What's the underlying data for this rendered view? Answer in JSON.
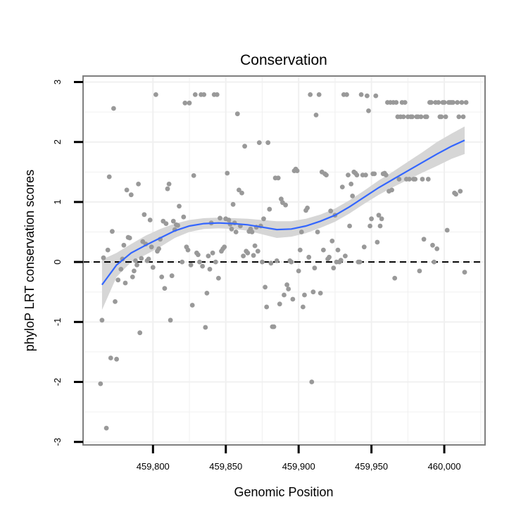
{
  "chart_data": {
    "type": "scatter",
    "title": "Conservation",
    "xlabel": "Genomic Position",
    "ylabel": "phyloP LRT conservation scores",
    "xlim": [
      459752,
      460028
    ],
    "ylim": [
      -3.05,
      3.1
    ],
    "x_ticks": [
      459800,
      459850,
      459900,
      459950,
      460000
    ],
    "x_tick_labels": [
      "459,800",
      "459,850",
      "459,900",
      "459,950",
      "460,000"
    ],
    "y_ticks": [
      -3,
      -2,
      -1,
      0,
      1,
      2,
      3
    ],
    "y_tick_labels": [
      "-3",
      "-2",
      "-1",
      "0",
      "1",
      "2",
      "3"
    ],
    "reference_line": {
      "y": 0,
      "style": "dashed",
      "color": "#000000"
    },
    "grid": true,
    "legend": "none",
    "colors": {
      "points": "#999999",
      "smooth_line": "#3366ff",
      "confidence_band": "#d6d6d6",
      "grid": "#f0f0f0",
      "frame": "#7f7f7f"
    },
    "points": [
      [
        459764,
        -2.03
      ],
      [
        459765,
        -0.97
      ],
      [
        459766,
        0.07
      ],
      [
        459768,
        -2.77
      ],
      [
        459769,
        0.2
      ],
      [
        459770,
        1.42
      ],
      [
        459771,
        -1.6
      ],
      [
        459772,
        0.51
      ],
      [
        459773,
        2.56
      ],
      [
        459774,
        -0.66
      ],
      [
        459775,
        -1.62
      ],
      [
        459776,
        -0.3
      ],
      [
        459778,
        -0.12
      ],
      [
        459779,
        0.05
      ],
      [
        459780,
        0.28
      ],
      [
        459781,
        -0.35
      ],
      [
        459782,
        1.2
      ],
      [
        459783,
        0.41
      ],
      [
        459784,
        0.4
      ],
      [
        459785,
        1.12
      ],
      [
        459786,
        -0.25
      ],
      [
        459787,
        -0.15
      ],
      [
        459788,
        0.02
      ],
      [
        459789,
        -0.05
      ],
      [
        459790,
        1.3
      ],
      [
        459791,
        -1.18
      ],
      [
        459792,
        0.06
      ],
      [
        459793,
        0.34
      ],
      [
        459794,
        0.79
      ],
      [
        459795,
        0.3
      ],
      [
        459796,
        0.02
      ],
      [
        459797,
        0.05
      ],
      [
        459798,
        0.7
      ],
      [
        459799,
        0.25
      ],
      [
        459800,
        -0.09
      ],
      [
        459802,
        2.79
      ],
      [
        459803,
        0.18
      ],
      [
        459804,
        0.22
      ],
      [
        459805,
        0.38
      ],
      [
        459806,
        -0.25
      ],
      [
        459807,
        0.68
      ],
      [
        459808,
        -0.44
      ],
      [
        459809,
        0.64
      ],
      [
        459810,
        1.22
      ],
      [
        459811,
        1.3
      ],
      [
        459812,
        -0.97
      ],
      [
        459813,
        -0.23
      ],
      [
        459814,
        0.68
      ],
      [
        459815,
        0.54
      ],
      [
        459816,
        0.62
      ],
      [
        459817,
        0.61
      ],
      [
        459818,
        0.93
      ],
      [
        459820,
        0.0
      ],
      [
        459821,
        0.75
      ],
      [
        459822,
        2.65
      ],
      [
        459823,
        0.25
      ],
      [
        459824,
        0.2
      ],
      [
        459825,
        2.65
      ],
      [
        459826,
        -0.05
      ],
      [
        459827,
        -0.72
      ],
      [
        459828,
        1.44
      ],
      [
        459829,
        2.79
      ],
      [
        459830,
        0.15
      ],
      [
        459831,
        0.12
      ],
      [
        459832,
        0.0
      ],
      [
        459833,
        2.79
      ],
      [
        459834,
        -0.07
      ],
      [
        459835,
        2.79
      ],
      [
        459836,
        -1.09
      ],
      [
        459837,
        -0.52
      ],
      [
        459838,
        0.1
      ],
      [
        459839,
        -0.12
      ],
      [
        459840,
        0.65
      ],
      [
        459841,
        0.15
      ],
      [
        459842,
        2.79
      ],
      [
        459843,
        0.0
      ],
      [
        459844,
        2.79
      ],
      [
        459845,
        -0.27
      ],
      [
        459846,
        0.73
      ],
      [
        459847,
        0.18
      ],
      [
        459848,
        0.22
      ],
      [
        459849,
        0.25
      ],
      [
        459850,
        0.72
      ],
      [
        459851,
        1.48
      ],
      [
        459852,
        0.7
      ],
      [
        459853,
        0.63
      ],
      [
        459854,
        0.55
      ],
      [
        459855,
        0.96
      ],
      [
        459856,
        0.65
      ],
      [
        459857,
        0.5
      ],
      [
        459858,
        2.47
      ],
      [
        459859,
        1.2
      ],
      [
        459860,
        0.6
      ],
      [
        459861,
        1.15
      ],
      [
        459862,
        0.1
      ],
      [
        459863,
        1.93
      ],
      [
        459864,
        0.18
      ],
      [
        459865,
        0.15
      ],
      [
        459866,
        0.51
      ],
      [
        459867,
        0.55
      ],
      [
        459868,
        0.5
      ],
      [
        459869,
        0.11
      ],
      [
        459870,
        0.27
      ],
      [
        459871,
        0.58
      ],
      [
        459872,
        0.18
      ],
      [
        459873,
        1.99
      ],
      [
        459874,
        0.6
      ],
      [
        459875,
        0.0
      ],
      [
        459876,
        0.72
      ],
      [
        459877,
        -0.42
      ],
      [
        459878,
        -0.75
      ],
      [
        459879,
        1.99
      ],
      [
        459880,
        0.88
      ],
      [
        459881,
        -0.02
      ],
      [
        459882,
        -1.08
      ],
      [
        459883,
        -1.08
      ],
      [
        459884,
        1.4
      ],
      [
        459885,
        0.02
      ],
      [
        459886,
        1.4
      ],
      [
        459887,
        -0.7
      ],
      [
        459888,
        1.05
      ],
      [
        459889,
        0.99
      ],
      [
        459890,
        -0.55
      ],
      [
        459891,
        0.95
      ],
      [
        459892,
        -0.38
      ],
      [
        459893,
        -0.45
      ],
      [
        459894,
        0.02
      ],
      [
        459895,
        0.0
      ],
      [
        459896,
        -0.62
      ],
      [
        459897,
        1.52
      ],
      [
        459898,
        1.55
      ],
      [
        459899,
        1.52
      ],
      [
        459900,
        -0.15
      ],
      [
        459901,
        0.2
      ],
      [
        459902,
        0.5
      ],
      [
        459903,
        -0.75
      ],
      [
        459904,
        -0.55
      ],
      [
        459905,
        0.86
      ],
      [
        459906,
        0.9
      ],
      [
        459907,
        0.08
      ],
      [
        459908,
        2.79
      ],
      [
        459909,
        -2.0
      ],
      [
        459910,
        -0.5
      ],
      [
        459911,
        -0.1
      ],
      [
        459912,
        2.45
      ],
      [
        459913,
        0.5
      ],
      [
        459914,
        2.79
      ],
      [
        459915,
        -0.52
      ],
      [
        459916,
        1.5
      ],
      [
        459917,
        0.2
      ],
      [
        459918,
        1.47
      ],
      [
        459919,
        1.45
      ],
      [
        459920,
        0.05
      ],
      [
        459921,
        0.08
      ],
      [
        459922,
        0.85
      ],
      [
        459923,
        0.35
      ],
      [
        459924,
        -0.1
      ],
      [
        459925,
        0.78
      ],
      [
        459926,
        0.0
      ],
      [
        459927,
        0.2
      ],
      [
        459928,
        0.0
      ],
      [
        459929,
        0.03
      ],
      [
        459930,
        1.25
      ],
      [
        459931,
        2.79
      ],
      [
        459932,
        0.1
      ],
      [
        459933,
        2.79
      ],
      [
        459934,
        1.45
      ],
      [
        459935,
        0.6
      ],
      [
        459936,
        1.3
      ],
      [
        459937,
        1.1
      ],
      [
        459938,
        1.5
      ],
      [
        459939,
        1.48
      ],
      [
        459940,
        1.45
      ],
      [
        459941,
        0.0
      ],
      [
        459942,
        0.0
      ],
      [
        459943,
        2.79
      ],
      [
        459944,
        1.45
      ],
      [
        459945,
        0.25
      ],
      [
        459946,
        1.45
      ],
      [
        459947,
        2.77
      ],
      [
        459948,
        2.52
      ],
      [
        459949,
        0.6
      ],
      [
        459950,
        0.72
      ],
      [
        459951,
        1.47
      ],
      [
        459952,
        1.47
      ],
      [
        459953,
        2.77
      ],
      [
        459954,
        0.33
      ],
      [
        459955,
        0.78
      ],
      [
        459956,
        0.6
      ],
      [
        459957,
        0.72
      ],
      [
        459958,
        1.47
      ],
      [
        459959,
        1.48
      ],
      [
        459960,
        1.45
      ],
      [
        459961,
        2.66
      ],
      [
        459962,
        1.18
      ],
      [
        459963,
        2.66
      ],
      [
        459964,
        1.2
      ],
      [
        459965,
        2.66
      ],
      [
        459966,
        -0.27
      ],
      [
        459967,
        2.66
      ],
      [
        459968,
        2.42
      ],
      [
        459969,
        1.38
      ],
      [
        459970,
        2.42
      ],
      [
        459971,
        2.66
      ],
      [
        459972,
        2.42
      ],
      [
        459973,
        2.66
      ],
      [
        459974,
        1.38
      ],
      [
        459975,
        2.42
      ],
      [
        459976,
        1.38
      ],
      [
        459977,
        2.42
      ],
      [
        459978,
        2.42
      ],
      [
        459979,
        1.38
      ],
      [
        459980,
        1.38
      ],
      [
        459981,
        2.42
      ],
      [
        459982,
        2.42
      ],
      [
        459983,
        -0.15
      ],
      [
        459984,
        2.42
      ],
      [
        459985,
        1.38
      ],
      [
        459986,
        0.38
      ],
      [
        459987,
        2.42
      ],
      [
        459988,
        2.42
      ],
      [
        459989,
        1.38
      ],
      [
        459990,
        2.66
      ],
      [
        459991,
        2.66
      ],
      [
        459992,
        0.28
      ],
      [
        459993,
        0.0
      ],
      [
        459994,
        2.66
      ],
      [
        459995,
        0.22
      ],
      [
        459996,
        2.66
      ],
      [
        459997,
        2.42
      ],
      [
        459998,
        2.42
      ],
      [
        459999,
        2.66
      ],
      [
        460000,
        2.66
      ],
      [
        460001,
        2.42
      ],
      [
        460002,
        0.53
      ],
      [
        460003,
        2.66
      ],
      [
        460004,
        2.66
      ],
      [
        460005,
        2.66
      ],
      [
        460006,
        2.66
      ],
      [
        460007,
        1.15
      ],
      [
        460008,
        1.13
      ],
      [
        460009,
        2.66
      ],
      [
        460010,
        2.42
      ],
      [
        460011,
        1.18
      ],
      [
        460012,
        2.66
      ],
      [
        460013,
        2.42
      ],
      [
        460014,
        -0.17
      ],
      [
        460015,
        2.66
      ]
    ],
    "smooth": {
      "x": [
        459765,
        459775,
        459785,
        459795,
        459805,
        459815,
        459825,
        459835,
        459845,
        459855,
        459865,
        459875,
        459885,
        459895,
        459905,
        459915,
        459925,
        459935,
        459945,
        459955,
        459965,
        459975,
        459985,
        459995,
        460005,
        460014
      ],
      "y": [
        -0.38,
        -0.05,
        0.15,
        0.28,
        0.4,
        0.52,
        0.6,
        0.64,
        0.65,
        0.64,
        0.62,
        0.58,
        0.54,
        0.55,
        0.6,
        0.68,
        0.78,
        0.92,
        1.08,
        1.24,
        1.38,
        1.52,
        1.66,
        1.8,
        1.93,
        2.03
      ],
      "lower": [
        -0.8,
        -0.25,
        0.0,
        0.12,
        0.25,
        0.4,
        0.5,
        0.55,
        0.56,
        0.55,
        0.52,
        0.46,
        0.4,
        0.42,
        0.48,
        0.57,
        0.67,
        0.81,
        0.97,
        1.12,
        1.25,
        1.37,
        1.49,
        1.6,
        1.72,
        1.8
      ],
      "upper": [
        0.04,
        0.15,
        0.3,
        0.44,
        0.55,
        0.64,
        0.7,
        0.73,
        0.74,
        0.73,
        0.72,
        0.7,
        0.68,
        0.68,
        0.72,
        0.79,
        0.89,
        1.03,
        1.19,
        1.36,
        1.51,
        1.67,
        1.83,
        2.0,
        2.14,
        2.26
      ]
    }
  }
}
